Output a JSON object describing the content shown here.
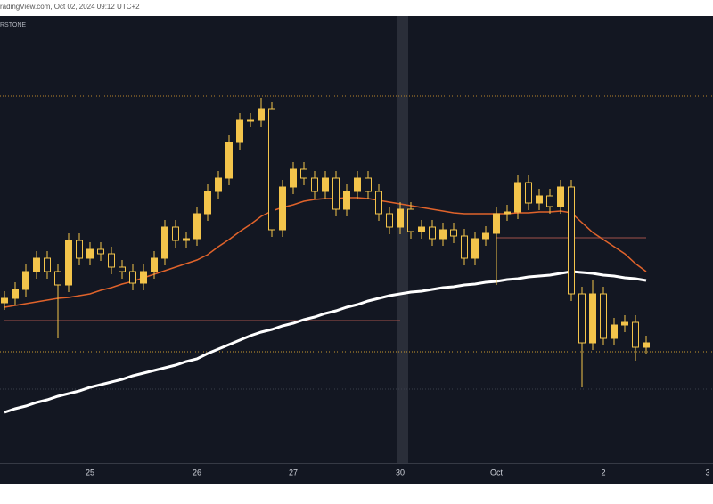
{
  "chart_data": {
    "type": "candlestick",
    "header": "radingView.com, Oct 02, 2024 09:12 UTC+2",
    "symbol": "RSTONE",
    "categories": [
      null,
      null,
      null,
      null,
      null,
      null,
      null,
      null,
      "25",
      null,
      null,
      null,
      null,
      null,
      null,
      null,
      null,
      null,
      "26",
      null,
      null,
      null,
      null,
      null,
      null,
      null,
      null,
      "27",
      null,
      null,
      null,
      null,
      null,
      null,
      null,
      null,
      null,
      "30",
      null,
      null,
      null,
      null,
      null,
      null,
      null,
      null,
      "Oct",
      null,
      null,
      null,
      null,
      null,
      null,
      null,
      null,
      null,
      "2",
      null,
      null,
      null,
      null
    ],
    "x_edge_label": "3",
    "open": [
      180,
      185,
      195,
      215,
      230,
      215,
      200,
      250,
      230,
      240,
      235,
      220,
      215,
      202,
      215,
      230,
      265,
      250,
      252,
      280,
      305,
      320,
      360,
      385,
      385,
      398,
      262,
      310,
      330,
      320,
      305,
      320,
      285,
      305,
      320,
      305,
      280,
      265,
      285,
      260,
      265,
      252,
      262,
      255,
      230,
      252,
      258,
      280,
      282,
      315,
      292,
      300,
      288,
      310,
      190,
      135,
      190,
      140,
      155,
      158,
      130
    ],
    "high": [
      193,
      203,
      223,
      238,
      238,
      223,
      258,
      258,
      248,
      248,
      243,
      228,
      223,
      223,
      238,
      273,
      273,
      260,
      288,
      313,
      328,
      368,
      393,
      393,
      410,
      406,
      318,
      338,
      338,
      328,
      328,
      328,
      313,
      328,
      328,
      313,
      288,
      293,
      293,
      273,
      273,
      270,
      270,
      263,
      260,
      266,
      288,
      290,
      323,
      323,
      308,
      308,
      318,
      318,
      198,
      205,
      198,
      163,
      166,
      166,
      143
    ],
    "low": [
      172,
      177,
      187,
      207,
      207,
      140,
      192,
      222,
      222,
      227,
      212,
      207,
      194,
      194,
      207,
      222,
      242,
      242,
      244,
      272,
      297,
      312,
      352,
      377,
      377,
      254,
      254,
      302,
      312,
      297,
      297,
      277,
      277,
      297,
      297,
      272,
      257,
      257,
      252,
      252,
      244,
      244,
      247,
      222,
      222,
      244,
      200,
      272,
      274,
      284,
      284,
      280,
      280,
      182,
      85,
      127,
      132,
      132,
      147,
      115,
      122
    ],
    "close": [
      185,
      195,
      215,
      230,
      215,
      200,
      250,
      230,
      240,
      235,
      220,
      215,
      202,
      215,
      230,
      265,
      250,
      252,
      280,
      305,
      320,
      360,
      385,
      385,
      398,
      262,
      310,
      330,
      320,
      305,
      320,
      285,
      305,
      320,
      305,
      280,
      265,
      285,
      260,
      265,
      252,
      262,
      255,
      230,
      252,
      258,
      280,
      282,
      315,
      292,
      300,
      288,
      310,
      190,
      135,
      190,
      140,
      155,
      158,
      130,
      135
    ],
    "color": "#f3c44b",
    "lines": [
      {
        "color": "#e0632b",
        "values": [
          175,
          177,
          179,
          181,
          183,
          185,
          186,
          188,
          190,
          194,
          197,
          201,
          204,
          208,
          212,
          216,
          220,
          224,
          228,
          234,
          243,
          251,
          260,
          268,
          277,
          283,
          287,
          290,
          294,
          296,
          297,
          297,
          298,
          298,
          297,
          295,
          293,
          291,
          289,
          287,
          285,
          283,
          281,
          280,
          280,
          280,
          280,
          280,
          281,
          281,
          282,
          282,
          283,
          281,
          270,
          259,
          251,
          243,
          235,
          224,
          215
        ]
      },
      {
        "color": "#ffffff",
        "values": [
          57,
          61,
          64,
          68,
          71,
          75,
          78,
          81,
          85,
          88,
          91,
          94,
          98,
          101,
          104,
          107,
          110,
          114,
          117,
          123,
          128,
          133,
          138,
          143,
          147,
          150,
          154,
          157,
          161,
          164,
          168,
          171,
          175,
          178,
          182,
          185,
          188,
          190,
          192,
          193,
          195,
          197,
          198,
          200,
          201,
          203,
          204,
          206,
          207,
          209,
          210,
          211,
          213,
          215,
          214,
          213,
          211,
          210,
          208,
          207,
          205
        ]
      }
    ],
    "levels": [
      {
        "value": 412,
        "color": "#b8862c",
        "dashed": true
      },
      {
        "value": 253,
        "color": "#a0524a",
        "dashed": false,
        "from": 46,
        "to": 60
      },
      {
        "value": 160,
        "color": "#a0524a",
        "dashed": false,
        "from": 0,
        "to": 37
      },
      {
        "value": 125,
        "color": "#c99a2e",
        "dashed": true
      },
      {
        "value": 83,
        "color": "#3a3f4b",
        "dashed": true
      }
    ],
    "ylim": [
      0,
      500
    ],
    "background": "#131722"
  }
}
